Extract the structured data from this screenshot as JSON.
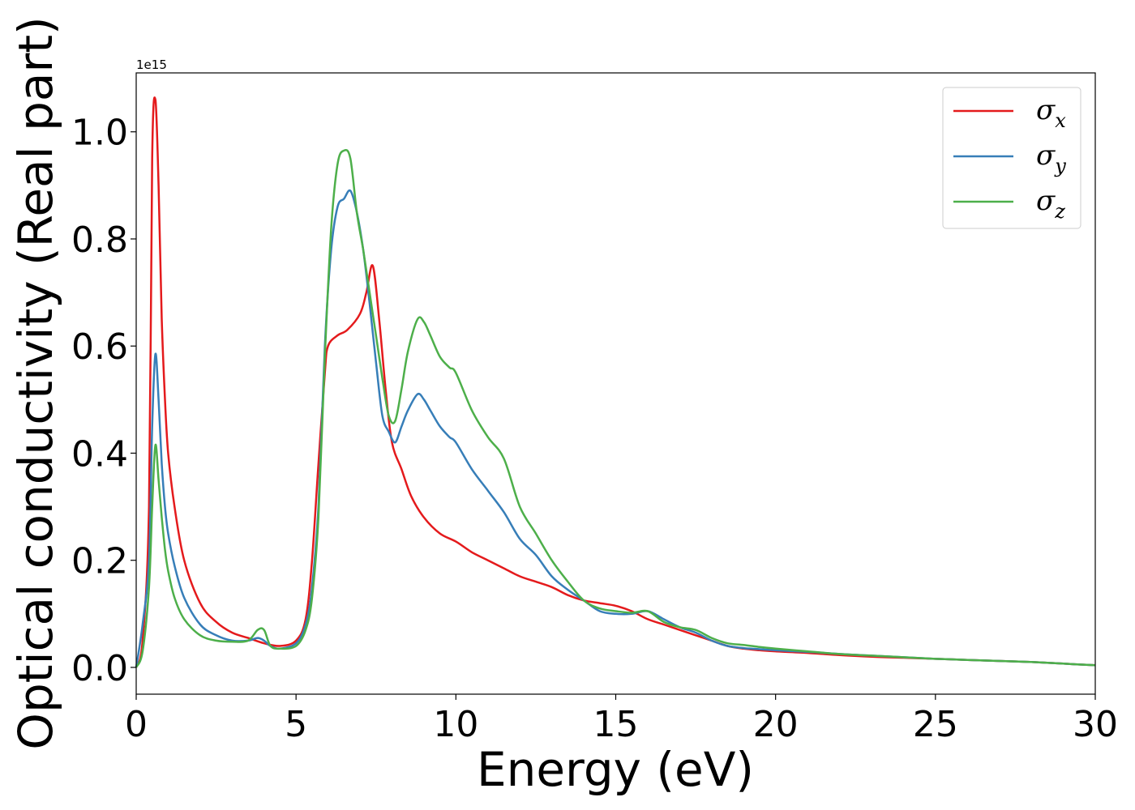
{
  "chart_data": {
    "type": "line",
    "xlabel": "Energy (eV)",
    "ylabel": "Optical conductivity (Real part)",
    "y_offset_text": "1e15",
    "xlim": [
      0,
      30
    ],
    "ylim": [
      -0.05,
      1.11
    ],
    "y_scale_factor": 1000000000000000.0,
    "x_ticks": [
      0,
      5,
      10,
      15,
      20,
      25,
      30
    ],
    "x_tick_labels": [
      "0",
      "5",
      "10",
      "15",
      "20",
      "25",
      "30"
    ],
    "y_ticks": [
      0.0,
      0.2,
      0.4,
      0.6,
      0.8,
      1.0
    ],
    "y_tick_labels": [
      "0.0",
      "0.2",
      "0.4",
      "0.6",
      "0.8",
      "1.0"
    ],
    "grid": false,
    "legend_position": "upper-right",
    "series": [
      {
        "name": "σx",
        "symbol": "σ",
        "subscript": "x",
        "color": "#e41a1c",
        "x": [
          0,
          0.2,
          0.4,
          0.5,
          0.6,
          0.7,
          0.8,
          0.9,
          1.0,
          1.2,
          1.5,
          2.0,
          2.5,
          3.0,
          3.5,
          4.0,
          4.5,
          5.0,
          5.3,
          5.5,
          5.7,
          5.9,
          6.0,
          6.3,
          6.6,
          7.0,
          7.2,
          7.4,
          7.6,
          7.8,
          8.0,
          8.3,
          8.6,
          9.0,
          9.5,
          10.0,
          10.5,
          11.0,
          11.5,
          12.0,
          12.5,
          13.0,
          13.5,
          14.0,
          14.5,
          15.0,
          15.5,
          16.0,
          16.5,
          17.0,
          17.5,
          18.0,
          18.5,
          19.0,
          19.5,
          20.0,
          21.0,
          22.0,
          23.0,
          24.0,
          25.0,
          26.0,
          27.0,
          28.0,
          29.0,
          30.0
        ],
        "y": [
          0.0,
          0.05,
          0.3,
          0.95,
          1.06,
          0.9,
          0.65,
          0.5,
          0.4,
          0.3,
          0.2,
          0.12,
          0.085,
          0.065,
          0.055,
          0.045,
          0.04,
          0.05,
          0.09,
          0.2,
          0.38,
          0.55,
          0.6,
          0.62,
          0.63,
          0.66,
          0.7,
          0.75,
          0.65,
          0.52,
          0.42,
          0.37,
          0.32,
          0.28,
          0.25,
          0.235,
          0.215,
          0.2,
          0.185,
          0.17,
          0.16,
          0.15,
          0.135,
          0.125,
          0.12,
          0.115,
          0.105,
          0.09,
          0.08,
          0.07,
          0.06,
          0.05,
          0.04,
          0.035,
          0.032,
          0.03,
          0.027,
          0.023,
          0.02,
          0.018,
          0.016,
          0.014,
          0.012,
          0.01,
          0.007,
          0.004
        ]
      },
      {
        "name": "σy",
        "symbol": "σ",
        "subscript": "y",
        "color": "#377eb8",
        "x": [
          0,
          0.2,
          0.4,
          0.5,
          0.6,
          0.7,
          0.8,
          0.9,
          1.0,
          1.2,
          1.5,
          2.0,
          2.5,
          3.0,
          3.5,
          3.8,
          4.0,
          4.2,
          4.5,
          5.0,
          5.3,
          5.5,
          5.7,
          5.9,
          6.1,
          6.3,
          6.5,
          6.7,
          6.9,
          7.1,
          7.3,
          7.5,
          7.7,
          7.9,
          8.1,
          8.3,
          8.5,
          8.8,
          9.0,
          9.2,
          9.5,
          9.8,
          10.0,
          10.5,
          11.0,
          11.5,
          12.0,
          12.5,
          13.0,
          13.5,
          14.0,
          14.5,
          15.0,
          15.5,
          16.0,
          16.5,
          17.0,
          17.5,
          18.0,
          18.5,
          19.0,
          19.5,
          20.0,
          21.0,
          22.0,
          23.0,
          24.0,
          25.0,
          26.0,
          27.0,
          28.0,
          29.0,
          30.0
        ],
        "y": [
          0.0,
          0.08,
          0.2,
          0.45,
          0.585,
          0.5,
          0.38,
          0.3,
          0.25,
          0.19,
          0.13,
          0.08,
          0.06,
          0.05,
          0.05,
          0.055,
          0.05,
          0.04,
          0.035,
          0.045,
          0.08,
          0.15,
          0.3,
          0.6,
          0.78,
          0.86,
          0.875,
          0.89,
          0.85,
          0.78,
          0.68,
          0.57,
          0.47,
          0.44,
          0.42,
          0.45,
          0.48,
          0.51,
          0.5,
          0.48,
          0.45,
          0.43,
          0.42,
          0.37,
          0.33,
          0.29,
          0.24,
          0.21,
          0.17,
          0.145,
          0.125,
          0.105,
          0.1,
          0.1,
          0.105,
          0.09,
          0.075,
          0.065,
          0.05,
          0.04,
          0.036,
          0.034,
          0.032,
          0.029,
          0.025,
          0.022,
          0.019,
          0.016,
          0.014,
          0.012,
          0.01,
          0.007,
          0.004
        ]
      },
      {
        "name": "σz",
        "symbol": "σ",
        "subscript": "z",
        "color": "#4daf4a",
        "x": [
          0,
          0.2,
          0.4,
          0.5,
          0.6,
          0.7,
          0.8,
          0.9,
          1.0,
          1.2,
          1.5,
          2.0,
          2.5,
          3.0,
          3.5,
          3.8,
          4.0,
          4.2,
          4.5,
          5.0,
          5.3,
          5.5,
          5.7,
          5.9,
          6.1,
          6.3,
          6.5,
          6.7,
          6.9,
          7.1,
          7.3,
          7.5,
          7.7,
          7.9,
          8.1,
          8.3,
          8.5,
          8.8,
          9.0,
          9.2,
          9.5,
          9.8,
          10.0,
          10.5,
          11.0,
          11.5,
          12.0,
          12.5,
          13.0,
          13.5,
          14.0,
          14.5,
          15.0,
          15.5,
          16.0,
          16.5,
          17.0,
          17.5,
          18.0,
          18.5,
          19.0,
          19.5,
          20.0,
          21.0,
          22.0,
          23.0,
          24.0,
          25.0,
          26.0,
          27.0,
          28.0,
          29.0,
          30.0
        ],
        "y": [
          0.0,
          0.03,
          0.15,
          0.3,
          0.415,
          0.35,
          0.28,
          0.22,
          0.18,
          0.13,
          0.09,
          0.06,
          0.05,
          0.048,
          0.05,
          0.07,
          0.07,
          0.04,
          0.035,
          0.04,
          0.07,
          0.13,
          0.28,
          0.58,
          0.82,
          0.94,
          0.965,
          0.95,
          0.85,
          0.78,
          0.7,
          0.62,
          0.54,
          0.47,
          0.46,
          0.52,
          0.59,
          0.65,
          0.645,
          0.62,
          0.58,
          0.56,
          0.55,
          0.48,
          0.43,
          0.39,
          0.3,
          0.25,
          0.2,
          0.16,
          0.125,
          0.11,
          0.105,
          0.102,
          0.105,
          0.085,
          0.075,
          0.07,
          0.055,
          0.045,
          0.042,
          0.038,
          0.035,
          0.03,
          0.025,
          0.022,
          0.019,
          0.016,
          0.014,
          0.012,
          0.01,
          0.007,
          0.004
        ]
      }
    ]
  }
}
